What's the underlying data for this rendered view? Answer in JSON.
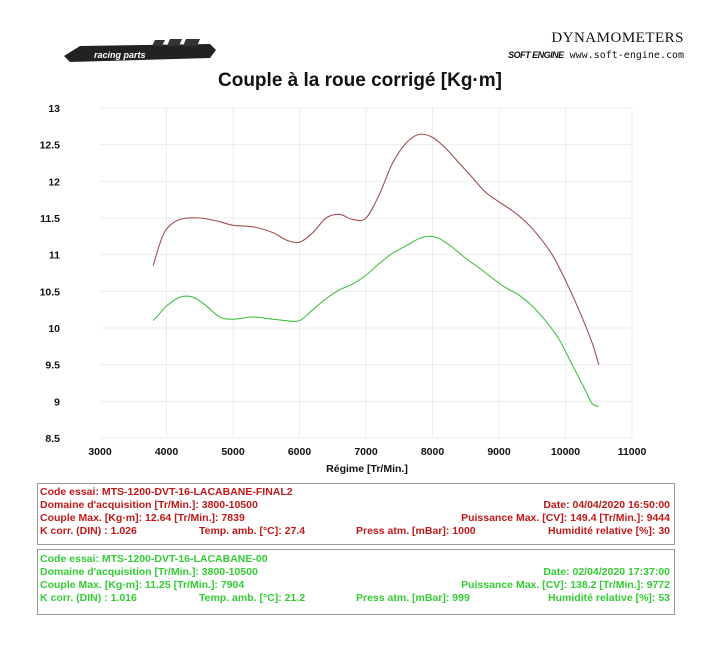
{
  "header": {
    "logo_text": "racing parts",
    "brand_name": "DYNAMOMETERS",
    "brand_site": "www.soft-engine.com",
    "brand_mark": "SOFT ENGINE"
  },
  "colors": {
    "run1": "#a05050",
    "run2": "#44c044",
    "red_text": "#c01818",
    "green_text": "#33cc33"
  },
  "chart_data": {
    "type": "line",
    "title": "Couple à la roue corrigé [Kg·m]",
    "xlabel": "Régime [Tr/Min.]",
    "ylabel": "",
    "xlim": [
      3000,
      11000
    ],
    "ylim": [
      8.5,
      13
    ],
    "xticks": [
      3000,
      4000,
      5000,
      6000,
      7000,
      8000,
      9000,
      10000,
      11000
    ],
    "yticks": [
      8.5,
      9,
      9.5,
      10,
      10.5,
      11,
      11.5,
      12,
      12.5,
      13
    ],
    "ytick_labels": [
      "8.5",
      "9",
      "9.5",
      "10",
      "10.5",
      "11",
      "11.5",
      "12",
      "12.5",
      "13"
    ],
    "grid": true,
    "series": [
      {
        "name": "MTS-1200-DVT-16-LACABANE-FINAL2",
        "x": [
          3800,
          3900,
          4000,
          4200,
          4500,
          4800,
          5000,
          5300,
          5600,
          5800,
          6000,
          6200,
          6400,
          6600,
          6800,
          7000,
          7200,
          7400,
          7600,
          7800,
          8000,
          8200,
          8400,
          8600,
          8800,
          9000,
          9200,
          9400,
          9600,
          9800,
          10000,
          10200,
          10400,
          10500
        ],
        "y": [
          10.85,
          11.15,
          11.35,
          11.48,
          11.5,
          11.45,
          11.4,
          11.38,
          11.3,
          11.2,
          11.17,
          11.3,
          11.5,
          11.55,
          11.48,
          11.5,
          11.82,
          12.25,
          12.52,
          12.64,
          12.6,
          12.45,
          12.25,
          12.05,
          11.85,
          11.72,
          11.6,
          11.45,
          11.25,
          11.0,
          10.65,
          10.25,
          9.8,
          9.5
        ]
      },
      {
        "name": "MTS-1200-DVT-16-LACABANE-00",
        "x": [
          3800,
          3900,
          4000,
          4200,
          4400,
          4600,
          4800,
          5000,
          5300,
          5600,
          5800,
          6000,
          6200,
          6400,
          6600,
          6800,
          7000,
          7200,
          7400,
          7600,
          7800,
          7950,
          8100,
          8300,
          8500,
          8700,
          8900,
          9100,
          9300,
          9500,
          9700,
          9900,
          10100,
          10300,
          10400,
          10500
        ],
        "y": [
          10.1,
          10.2,
          10.3,
          10.42,
          10.42,
          10.3,
          10.15,
          10.12,
          10.15,
          10.12,
          10.1,
          10.1,
          10.25,
          10.4,
          10.52,
          10.6,
          10.72,
          10.88,
          11.02,
          11.12,
          11.22,
          11.25,
          11.22,
          11.1,
          10.95,
          10.82,
          10.68,
          10.55,
          10.45,
          10.3,
          10.1,
          9.85,
          9.5,
          9.15,
          8.97,
          8.93
        ]
      }
    ]
  },
  "runs": [
    {
      "code": "Code essai: MTS-1200-DVT-16-LACABANE-FINAL2",
      "domain": "Domaine d'acquisition [Tr/Min.]: 3800-10500",
      "date": "Date: 04/04/2020   16:50:00",
      "couple": "Couple Max. [Kg·m]: 12.64   [Tr/Min.]: 7839",
      "puissance": "Puissance Max. [CV]: 149.4   [Tr/Min.]: 9444",
      "kcorr": "K corr. (DIN) : 1.026",
      "temp": "Temp. amb. [°C]: 27.4",
      "press": "Press atm. [mBar]: 1000",
      "hum": "Humidité relative [%]: 30"
    },
    {
      "code": "Code essai: MTS-1200-DVT-16-LACABANE-00",
      "domain": "Domaine d'acquisition [Tr/Min.]: 3800-10500",
      "date": "Date: 02/04/2020   17:37:00",
      "couple": "Couple Max. [Kg·m]: 11.25   [Tr/Min.]: 7904",
      "puissance": "Puissance Max. [CV]: 138.2   [Tr/Min.]: 9772",
      "kcorr": "K corr. (DIN) : 1.016",
      "temp": "Temp. amb. [°C]: 21.2",
      "press": "Press atm. [mBar]: 999",
      "hum": "Humidité relative [%]: 53"
    }
  ]
}
